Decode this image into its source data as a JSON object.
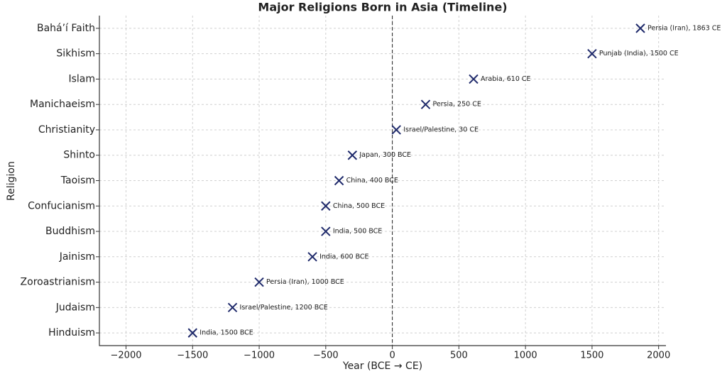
{
  "chart_data": {
    "type": "scatter",
    "title": "Major Religions Born in Asia (Timeline)",
    "x_label": "Year (BCE → CE)",
    "y_label": "Religion",
    "categories": [
      "Hinduism",
      "Judaism",
      "Zoroastrianism",
      "Jainism",
      "Buddhism",
      "Confucianism",
      "Taoism",
      "Shinto",
      "Christianity",
      "Manichaeism",
      "Islam",
      "Sikhism",
      "Bahá’í Faith"
    ],
    "values": [
      -1500,
      -1200,
      -1000,
      -600,
      -500,
      -500,
      -400,
      -300,
      30,
      250,
      610,
      1500,
      1863
    ],
    "value_labels": [
      "India, 1500 BCE",
      "Israel/Palestine, 1200 BCE",
      "Persia (Iran), 1000 BCE",
      "India, 600 BCE",
      "India, 500 BCE",
      "China, 500 BCE",
      "China, 400 BCE",
      "Japan, 300 BCE",
      "Israel/Palestine, 30 CE",
      "Persia, 250 CE",
      "Arabia, 610 CE",
      "Punjab (India), 1500 CE",
      "Persia (Iran), 1863 CE"
    ],
    "color": "#1f2a6b",
    "xlim": [
      -2200,
      2055
    ],
    "xticks": [
      {
        "value": -2000,
        "label": "−2000"
      },
      {
        "value": -1500,
        "label": "−1500"
      },
      {
        "value": -1000,
        "label": "−1000"
      },
      {
        "value": -500,
        "label": "−500"
      },
      0,
      500,
      1000,
      1500,
      2000
    ],
    "vline": 0,
    "grid": true
  }
}
